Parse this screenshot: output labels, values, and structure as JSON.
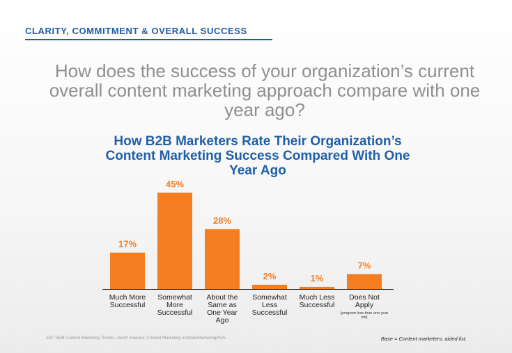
{
  "header": {
    "section_title": "CLARITY, COMMITMENT & OVERALL SUCCESS"
  },
  "question": "How does the success of your organization’s current overall content marketing approach compare with one year ago?",
  "colors": {
    "accent": "#1f5fa8",
    "bar": "#f47e20",
    "axis": "#333333"
  },
  "chart_data": {
    "type": "bar",
    "title": "How B2B Marketers Rate Their Organization’s Content Marketing Success Compared With One Year Ago",
    "categories": [
      "Much More Successful",
      "Somewhat More Successful",
      "About the Same as One Year Ago",
      "Somewhat Less Successful",
      "Much Less Successful",
      "Does Not Apply"
    ],
    "category_notes": [
      "",
      "",
      "",
      "",
      "",
      "(program less than one year old)"
    ],
    "values": [
      17,
      45,
      28,
      2,
      1,
      7
    ],
    "value_labels": [
      "17%",
      "45%",
      "28%",
      "2%",
      "1%",
      "7%"
    ],
    "unit": "%",
    "ylim": [
      0,
      50
    ],
    "xlabel": "",
    "ylabel": "",
    "grid": false
  },
  "footer": {
    "source": "2017 B2B Content Marketing Trends—North America: Content Marketing Institute/MarketingProfs",
    "base": "Base = Content marketers; aided list."
  }
}
